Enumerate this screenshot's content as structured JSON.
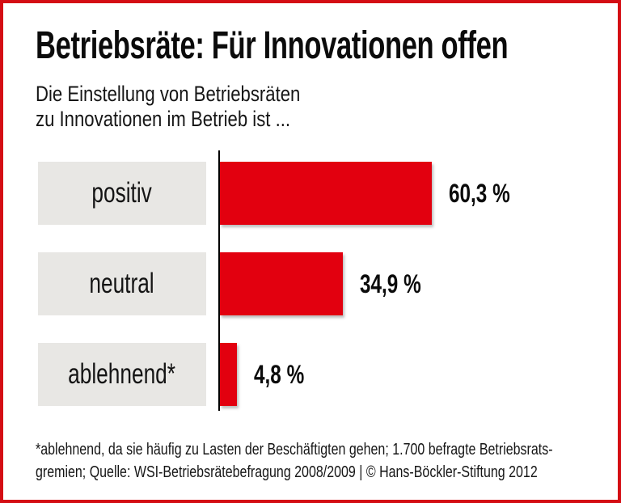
{
  "page": {
    "title": "Betriebsräte: Für Innovationen offen",
    "subtitle_line1": "Die Einstellung von Betriebsräten",
    "subtitle_line2": "zu Innovationen im Betrieb ist ...",
    "footnote_line1": "*ablehnend, da sie häufig zu Lasten der Beschäftigten gehen; 1.700 befragte Betriebsrats-",
    "footnote_line2": "gremien; Quelle: WSI-Betriebsrätebefragung 2008/2009 | © Hans-Böckler-Stiftung 2012",
    "frame_color": "#d40d14"
  },
  "chart_data": {
    "type": "bar",
    "orientation": "horizontal",
    "title": "Betriebsräte: Für Innovationen offen",
    "subtitle": "Die Einstellung von Betriebsräten zu Innovationen im Betrieb ist ...",
    "categories": [
      "positiv",
      "neutral",
      "ablehnend*"
    ],
    "values": [
      60.3,
      34.9,
      4.8
    ],
    "value_labels": [
      "60,3 %",
      "34,9 %",
      "4,8 %"
    ],
    "xlabel": "",
    "ylabel": "",
    "xlim": [
      0,
      65
    ],
    "grid": false,
    "legend": false,
    "bar_color": "#e2000f",
    "category_box_color": "#e8e7e4",
    "axis_color": "#000000",
    "footnote": "*ablehnend, da sie häufig zu Lasten der Beschäftigten gehen; 1.700 befragte Betriebsratsgremien; Quelle: WSI-Betriebsrätebefragung 2008/2009 | © Hans-Böckler-Stiftung 2012"
  }
}
